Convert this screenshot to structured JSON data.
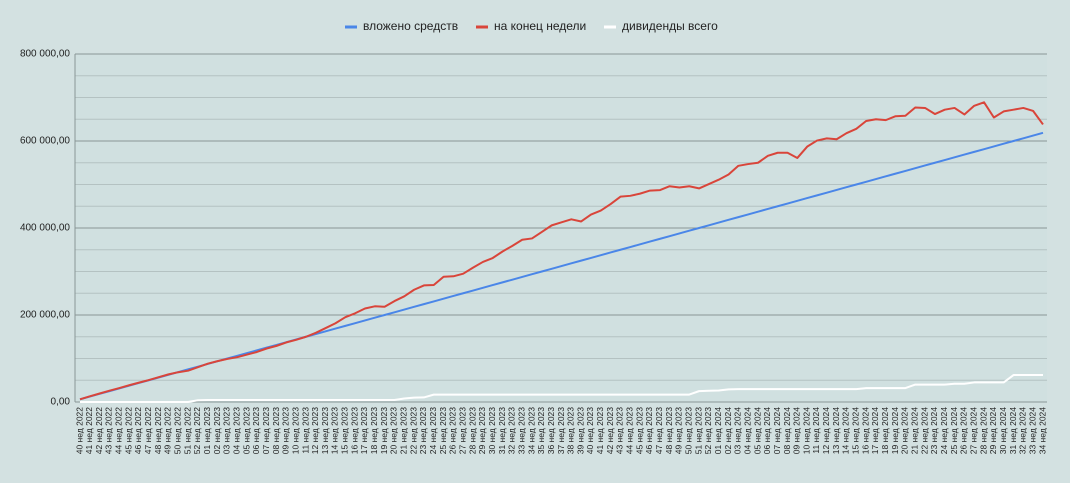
{
  "chart_data": {
    "type": "line",
    "categories": [
      "40 нед 2022",
      "41 нед 2022",
      "42 нед 2022",
      "43 нед 2022",
      "44 нед 2022",
      "45 нед 2022",
      "46 нед 2022",
      "47 нед 2022",
      "48 нед 2022",
      "49 нед 2022",
      "50 нед 2022",
      "51 нед 2022",
      "52 нед 2022",
      "01 нед 2023",
      "02 нед 2023",
      "03 нед 2023",
      "04 нед 2023",
      "05 нед 2023",
      "06 нед 2023",
      "07 нед 2023",
      "08 нед 2023",
      "09 нед 2023",
      "10 нед 2023",
      "11 нед 2023",
      "12 нед 2023",
      "13 нед 2023",
      "14 нед 2023",
      "15 нед 2023",
      "16 нед 2023",
      "17 нед 2023",
      "18 нед 2023",
      "19 нед 2023",
      "20 нед 2023",
      "21 нед 2023",
      "22 нед 2023",
      "23 нед 2023",
      "24 нед 2023",
      "25 нед 2023",
      "26 нед 2023",
      "27 нед 2023",
      "28 нед 2023",
      "29 нед 2023",
      "30 нед 2023",
      "31 нед 2023",
      "32 нед 2023",
      "33 нед 2023",
      "34 нед 2023",
      "35 нед 2023",
      "36 нед 2023",
      "37 нед 2023",
      "38 нед 2023",
      "39 нед 2023",
      "40 нед 2023",
      "41 нед 2023",
      "42 нед 2023",
      "43 нед 2023",
      "44 нед 2023",
      "45 нед 2023",
      "46 нед 2023",
      "47 нед 2023",
      "48 нед 2023",
      "49 нед 2023",
      "50 нед 2023",
      "51 нед 2023",
      "52 нед 2023",
      "01 нед 2024",
      "02 нед 2024",
      "03 нед 2024",
      "04 нед 2024",
      "05 нед 2024",
      "06 нед 2024",
      "07 нед 2024",
      "08 нед 2024",
      "09 нед 2024",
      "10 нед 2024",
      "11 нед 2024",
      "12 нед 2024",
      "13 нед 2024",
      "14 нед 2024",
      "15 нед 2024",
      "16 нед 2024",
      "17 нед 2024",
      "18 нед 2024",
      "19 нед 2024",
      "20 нед 2024",
      "21 нед 2024",
      "22 нед 2024",
      "23 нед 2024",
      "24 нед 2024",
      "25 нед 2024",
      "26 нед 2024",
      "27 нед 2024",
      "28 нед 2024",
      "29 нед 2024",
      "30 нед 2024",
      "31 нед 2024",
      "32 нед 2024",
      "33 нед 2024",
      "34 нед 2024"
    ],
    "series": [
      {
        "name": "вложено средств",
        "color": "#4a86e8",
        "values": [
          6250,
          12500,
          18750,
          25000,
          31250,
          37500,
          43750,
          50000,
          56250,
          62500,
          68750,
          75000,
          81250,
          87500,
          93750,
          100000,
          106250,
          112500,
          118750,
          125000,
          131250,
          137500,
          143750,
          150000,
          156250,
          162500,
          168750,
          175000,
          181250,
          187500,
          193750,
          200000,
          206250,
          212500,
          218750,
          225000,
          231250,
          237500,
          243750,
          250000,
          256250,
          262500,
          268750,
          275000,
          281250,
          287500,
          293750,
          300000,
          306250,
          312500,
          318750,
          325000,
          331250,
          337500,
          343750,
          350000,
          356250,
          362500,
          368750,
          375000,
          381250,
          387500,
          393750,
          400000,
          406250,
          412500,
          418750,
          425000,
          431250,
          437500,
          443750,
          450000,
          456250,
          462500,
          468750,
          475000,
          481250,
          487500,
          493750,
          500000,
          506250,
          512500,
          518750,
          525000,
          531250,
          537500,
          543750,
          550000,
          556250,
          562500,
          568750,
          575000,
          581250,
          587500,
          593750,
          600000,
          606250,
          612500,
          618750
        ]
      },
      {
        "name": "на конец недели",
        "color": "#d9453a",
        "values": [
          6250,
          13000,
          19500,
          26000,
          32000,
          38500,
          44500,
          50500,
          57000,
          63500,
          68500,
          72000,
          80000,
          88000,
          94000,
          99000,
          103000,
          109000,
          115000,
          123000,
          129000,
          137000,
          143000,
          150000,
          159000,
          170000,
          181000,
          195000,
          204000,
          215000,
          220000,
          219000,
          232000,
          243000,
          258000,
          268000,
          269000,
          288000,
          289000,
          295000,
          309000,
          322000,
          331000,
          346000,
          359000,
          373000,
          376000,
          391000,
          406000,
          413000,
          420000,
          415000,
          431000,
          440000,
          455000,
          472000,
          474000,
          479000,
          486000,
          487000,
          496000,
          493000,
          496000,
          491000,
          501000,
          511000,
          523000,
          543000,
          547000,
          550000,
          566000,
          573000,
          573000,
          561000,
          587000,
          601000,
          606000,
          604000,
          618000,
          628000,
          646000,
          650000,
          648000,
          657000,
          658000,
          677000,
          676000,
          662000,
          672000,
          676000,
          661000,
          681000,
          689000,
          654000,
          668000,
          672000,
          676000,
          669000,
          638000
        ]
      },
      {
        "name": "дивиденды всего",
        "color": "#ffffff",
        "values": [
          0,
          0,
          0,
          0,
          0,
          0,
          0,
          0,
          0,
          0,
          0,
          0,
          4000,
          4500,
          4500,
          4500,
          4500,
          4500,
          4500,
          4500,
          4500,
          4500,
          4500,
          4500,
          4500,
          4500,
          4500,
          4500,
          4500,
          4500,
          4500,
          4500,
          4500,
          8000,
          10000,
          10500,
          17000,
          17000,
          17000,
          17000,
          17000,
          17000,
          17000,
          17000,
          17000,
          17000,
          17000,
          17000,
          17000,
          17000,
          17000,
          17000,
          17000,
          17000,
          17000,
          17000,
          17000,
          17000,
          17000,
          17000,
          17000,
          17000,
          17000,
          25000,
          26000,
          26500,
          29000,
          29500,
          29500,
          29500,
          29500,
          29500,
          29500,
          29500,
          29500,
          29500,
          29500,
          29500,
          29500,
          29500,
          32000,
          32000,
          32000,
          32000,
          32000,
          40000,
          40000,
          40000,
          40000,
          42000,
          42000,
          45000,
          45000,
          45000,
          45000,
          62000,
          62000,
          62000,
          62000
        ]
      }
    ],
    "ylim": [
      0,
      800000
    ],
    "yticks": [
      {
        "value": 0,
        "label": "0,00"
      },
      {
        "value": 200000,
        "label": "200 000,00"
      },
      {
        "value": 400000,
        "label": "400 000,00"
      },
      {
        "value": 600000,
        "label": "600 000,00"
      },
      {
        "value": 800000,
        "label": "800 000,00"
      }
    ],
    "minor_yticks": [
      50000,
      100000,
      150000,
      250000,
      300000,
      350000,
      450000,
      500000,
      550000,
      650000,
      700000,
      750000
    ],
    "grid": true,
    "legend": "top"
  }
}
